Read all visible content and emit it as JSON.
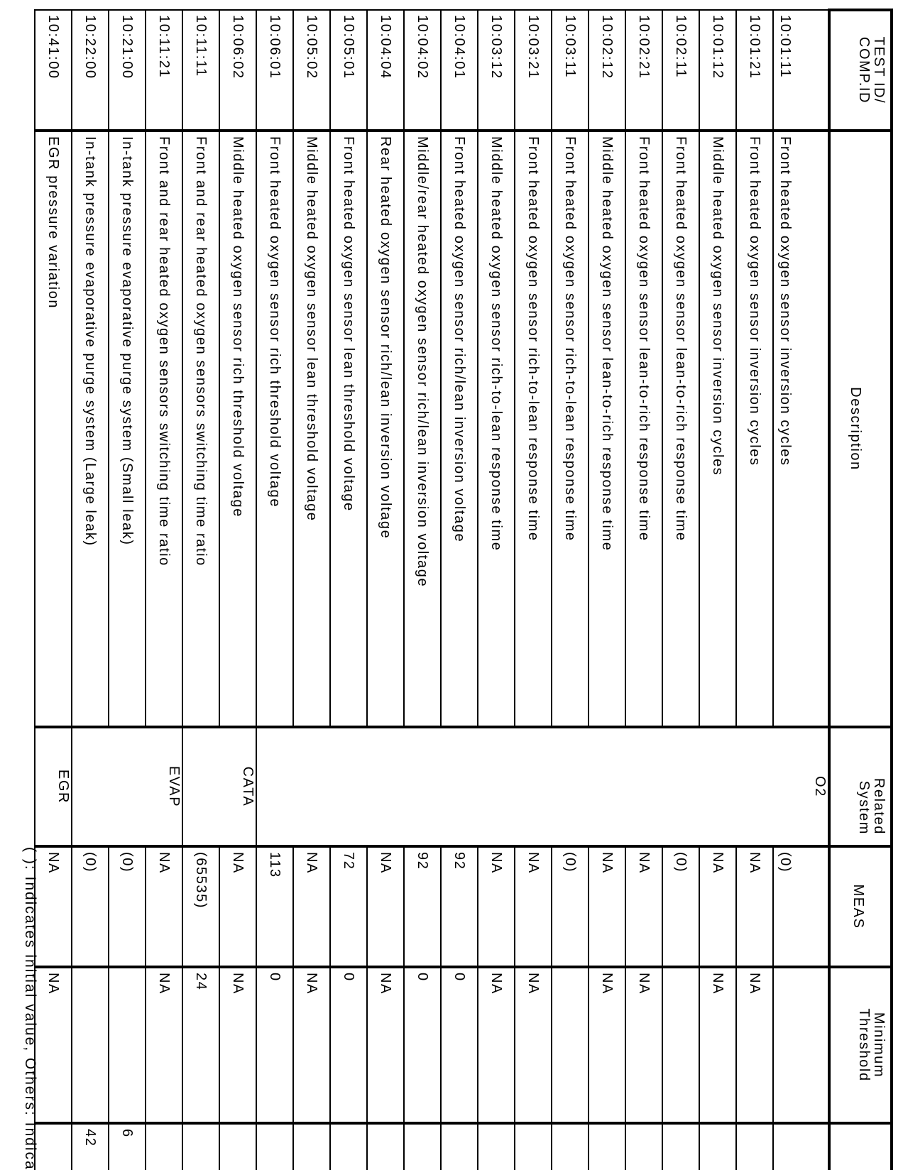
{
  "header": {
    "test_id_line1": "TEST ID/",
    "test_id_line2": "COMP.ID",
    "description": "Description",
    "related_line1": "Related",
    "related_line2": "System",
    "meas": "MEAS",
    "min_line1": "Minimum",
    "min_line2": "Threshold",
    "last": ""
  },
  "rows": [
    {
      "id": "10:01:11",
      "description": "Front heated oxygen sensor inversion cycles",
      "meas": "(0)",
      "min": "",
      "last": ""
    },
    {
      "id": "10:01:21",
      "description": "Front heated oxygen sensor inversion cycles",
      "meas": "NA",
      "min": "NA",
      "last": ""
    },
    {
      "id": "10:01:12",
      "description": "Middle heated oxygen sensor inversion cycles",
      "meas": "NA",
      "min": "NA",
      "last": ""
    },
    {
      "id": "10:02:11",
      "description": "Front heated oxygen sensor lean-to-rich response time",
      "meas": "(0)",
      "min": "",
      "last": ""
    },
    {
      "id": "10:02:21",
      "description": "Front heated oxygen sensor lean-to-rich response time",
      "meas": "NA",
      "min": "NA",
      "last": ""
    },
    {
      "id": "10:02:12",
      "description": "Middle heated oxygen sensor lean-to-rich response time",
      "meas": "NA",
      "min": "NA",
      "last": ""
    },
    {
      "id": "10:03:11",
      "description": "Front heated oxygen sensor rich-to-lean response time",
      "meas": "(0)",
      "min": "",
      "last": ""
    },
    {
      "id": "10:03:21",
      "description": "Front heated oxygen sensor rich-to-lean response time",
      "meas": "NA",
      "min": "NA",
      "last": ""
    },
    {
      "id": "10:03:12",
      "description": "Middle heated oxygen sensor rich-to-lean response time",
      "meas": "NA",
      "min": "NA",
      "last": ""
    },
    {
      "id": "10:04:01",
      "description": "Front heated oxygen sensor rich/lean inversion voltage",
      "meas": "92",
      "min": "0",
      "last": ""
    },
    {
      "id": "10:04:02",
      "description": "Middle/rear heated oxygen sensor rich/lean inversion voltage",
      "meas": "92",
      "min": "0",
      "last": ""
    },
    {
      "id": "10:04:04",
      "description": "Rear heated oxygen sensor rich/lean inversion voltage",
      "meas": "NA",
      "min": "NA",
      "last": ""
    },
    {
      "id": "10:05:01",
      "description": "Front heated oxygen sensor lean threshold voltage",
      "meas": "72",
      "min": "0",
      "last": ""
    },
    {
      "id": "10:05:02",
      "description": "Middle heated oxygen sensor lean threshold voltage",
      "meas": "NA",
      "min": "NA",
      "last": ""
    },
    {
      "id": "10:06:01",
      "description": "Front heated oxygen sensor rich threshold voltage",
      "meas": "113",
      "min": "0",
      "last": ""
    },
    {
      "id": "10:06:02",
      "description": "Middle heated oxygen sensor rich threshold voltage",
      "meas": "NA",
      "min": "NA",
      "last": ""
    },
    {
      "id": "10:11:11",
      "description": "Front and rear heated oxygen sensors switching time ratio",
      "meas": "(65535)",
      "min": "24",
      "last": ""
    },
    {
      "id": "10:11:21",
      "description": "Front and rear heated oxygen sensors switching time ratio",
      "meas": "NA",
      "min": "NA",
      "last": ""
    },
    {
      "id": "10:21:00",
      "description": "In-tank pressure evaporative purge system (Small leak)",
      "meas": "(0)",
      "min": "",
      "last": "6"
    },
    {
      "id": "10:22:00",
      "description": "In-tank pressure evaporative purge system (Large leak)",
      "meas": "(0)",
      "min": "",
      "last": "42"
    },
    {
      "id": "10:41:00",
      "description": "EGR pressure variation",
      "meas": "NA",
      "min": "NA",
      "last": ""
    }
  ],
  "related_systems": [
    {
      "label": "O2",
      "rows": 15
    },
    {
      "label": "CATA",
      "rows": 2
    },
    {
      "label": "EVAP",
      "rows": 3
    },
    {
      "label": "EGR",
      "rows": 1
    }
  ],
  "footnote": "( ): Indicates initial value,  Others: Indicate"
}
